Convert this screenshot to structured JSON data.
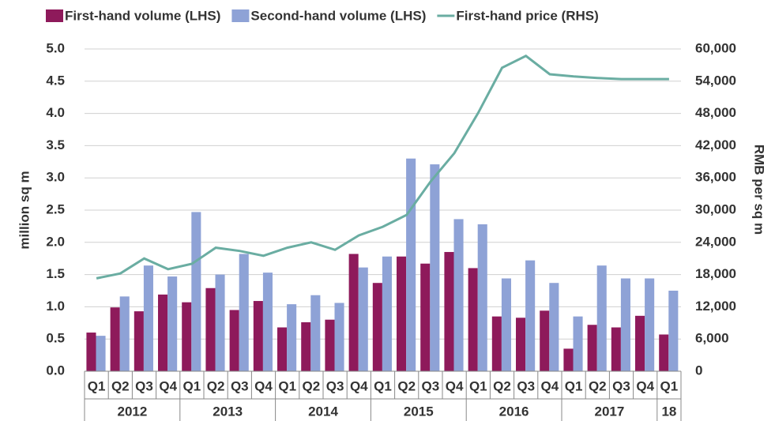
{
  "chart_data": {
    "type": "bar-line",
    "y_label": "million sq m",
    "y2_label": "RMB per sq m",
    "categories": [
      "Q1",
      "Q2",
      "Q3",
      "Q4",
      "Q1",
      "Q2",
      "Q3",
      "Q4",
      "Q1",
      "Q2",
      "Q3",
      "Q4",
      "Q1",
      "Q2",
      "Q3",
      "Q4",
      "Q1",
      "Q2",
      "Q3",
      "Q4",
      "Q1",
      "Q2",
      "Q3",
      "Q4",
      "Q1"
    ],
    "years": [
      "2012",
      "2013",
      "2014",
      "2015",
      "2016",
      "2017",
      "18"
    ],
    "series": [
      {
        "name": "First-hand volume (LHS)",
        "color": "#8e1a5b",
        "type": "bar",
        "values": [
          0.6,
          0.99,
          0.93,
          1.19,
          1.07,
          1.29,
          0.95,
          1.09,
          0.68,
          0.76,
          0.8,
          1.82,
          1.37,
          1.78,
          1.67,
          1.85,
          1.6,
          0.85,
          0.83,
          0.94,
          0.35,
          0.72,
          0.68,
          0.86,
          0.57
        ]
      },
      {
        "name": "Second-hand volume (LHS)",
        "color": "#8ea2d6",
        "type": "bar",
        "values": [
          0.55,
          1.16,
          1.64,
          1.47,
          2.47,
          1.5,
          1.82,
          1.53,
          1.04,
          1.18,
          1.06,
          1.61,
          1.78,
          3.3,
          3.21,
          2.36,
          2.28,
          1.44,
          1.72,
          1.37,
          0.85,
          1.64,
          1.44,
          1.44,
          1.25
        ]
      },
      {
        "name": "First-hand price (RHS)",
        "color": "#6aada2",
        "type": "line",
        "axis": "y2",
        "values": [
          17300,
          18200,
          21000,
          19000,
          20000,
          23000,
          22400,
          21500,
          23000,
          24000,
          22600,
          25300,
          26900,
          29100,
          35300,
          40600,
          48100,
          56500,
          58700,
          55300,
          54900,
          54600,
          54400,
          54400,
          54400
        ]
      }
    ],
    "ylim": [
      0,
      5
    ],
    "yticks": [
      {
        "value": 0,
        "label": "0.0"
      },
      0.5,
      {
        "value": 1,
        "label": "1.0"
      },
      1.5,
      {
        "value": 2,
        "label": "2.0"
      },
      2.5,
      {
        "value": 3,
        "label": "3.0"
      },
      3.5,
      {
        "value": 4,
        "label": "4.0"
      },
      4.5,
      {
        "value": 5,
        "label": "5.0"
      }
    ],
    "y2lim": [
      0,
      60000
    ],
    "y2ticks": [
      0,
      {
        "value": 6000,
        "label": "6,000"
      },
      {
        "value": 12000,
        "label": "12,000"
      },
      {
        "value": 18000,
        "label": "18,000"
      },
      {
        "value": 24000,
        "label": "24,000"
      },
      {
        "value": 30000,
        "label": "30,000"
      },
      {
        "value": 36000,
        "label": "36,000"
      },
      {
        "value": 42000,
        "label": "42,000"
      },
      {
        "value": 48000,
        "label": "48,000"
      },
      {
        "value": 54000,
        "label": "54,000"
      },
      {
        "value": 60000,
        "label": "60,000"
      }
    ],
    "grid": true
  }
}
